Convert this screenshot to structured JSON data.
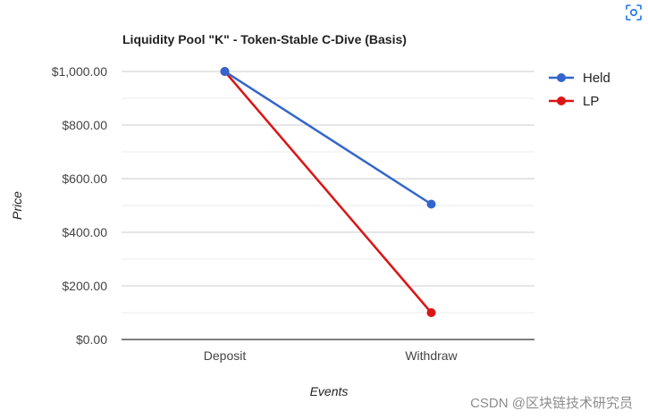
{
  "chart_data": {
    "type": "line",
    "title": "Liquidity Pool \"K\" - Token-Stable C-Dive (Basis)",
    "xlabel": "Events",
    "ylabel": "Price",
    "categories": [
      "Deposit",
      "Withdraw"
    ],
    "series": [
      {
        "name": "Held",
        "values": [
          1000,
          505
        ],
        "color": "#3366cc"
      },
      {
        "name": "LP",
        "values": [
          1000,
          100
        ],
        "color": "#dc1414"
      }
    ],
    "ylim": [
      0,
      1000
    ],
    "yticks": [
      0,
      200,
      400,
      600,
      800,
      1000
    ],
    "ytick_labels": [
      "$0.00",
      "$200.00",
      "$400.00",
      "$600.00",
      "$800.00",
      "$1,000.00"
    ],
    "grid": true,
    "legend_position": "right"
  },
  "watermark": "CSDN @区块链技术研究员",
  "toolbar": {
    "icon": "scan-icon"
  }
}
